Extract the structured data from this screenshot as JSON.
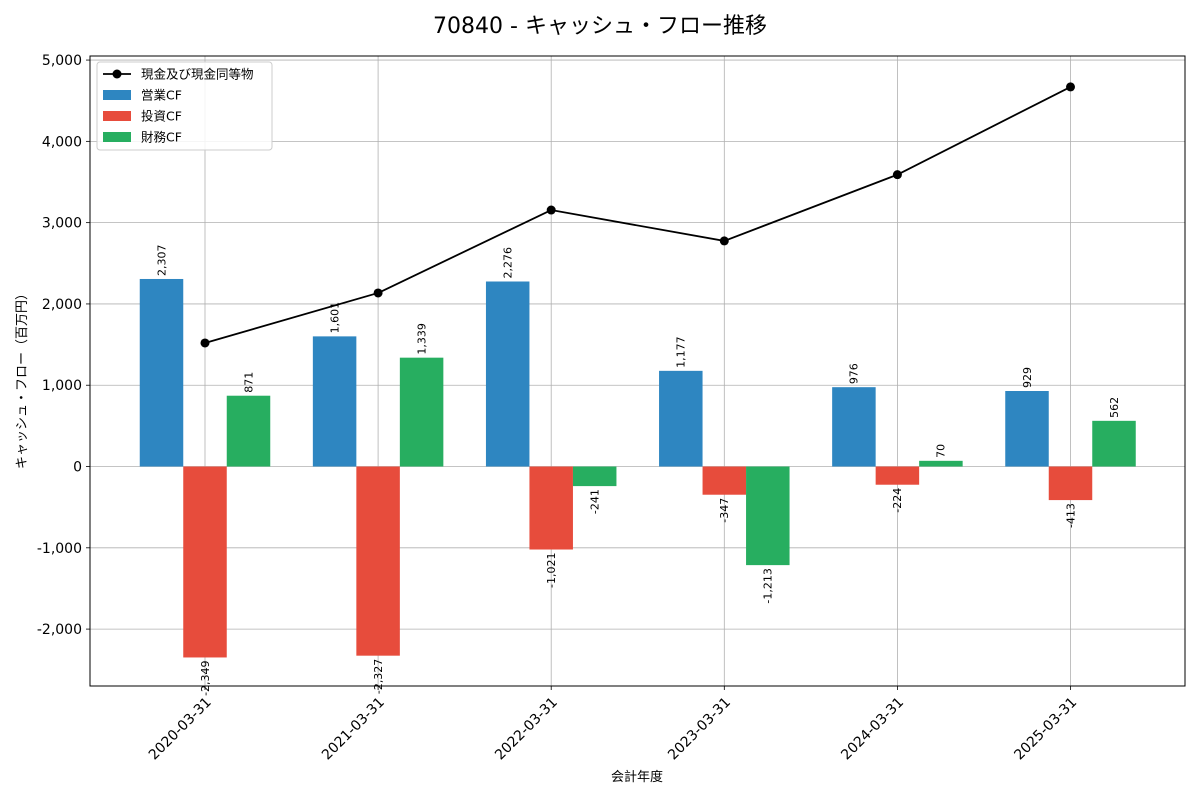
{
  "chart_data": {
    "type": "bar",
    "title": "70840 - キャッシュ・フロー推移",
    "xlabel": "会計年度",
    "ylabel": "キャッシュ・フロー（百万円）",
    "categories": [
      "2020-03-31",
      "2021-03-31",
      "2022-03-31",
      "2023-03-31",
      "2024-03-31",
      "2025-03-31"
    ],
    "series": [
      {
        "name": "営業CF",
        "type": "bar",
        "color": "#2e86c1",
        "values": [
          2307,
          1601,
          2276,
          1177,
          976,
          929
        ],
        "labels": [
          "2,307",
          "1,601",
          "2,276",
          "1,177",
          "976",
          "929"
        ]
      },
      {
        "name": "投資CF",
        "type": "bar",
        "color": "#e74c3c",
        "values": [
          -2349,
          -2327,
          -1021,
          -347,
          -224,
          -413
        ],
        "labels": [
          "-2,349",
          "-2,327",
          "-1,021",
          "-347",
          "-224",
          "-413"
        ]
      },
      {
        "name": "財務CF",
        "type": "bar",
        "color": "#27ae60",
        "values": [
          871,
          1339,
          -241,
          -1213,
          70,
          562
        ],
        "labels": [
          "871",
          "1,339",
          "-241",
          "-1,213",
          "70",
          "562"
        ]
      },
      {
        "name": "現金及び現金同等物",
        "type": "line",
        "color": "#000000",
        "values": [
          1520,
          2135,
          3155,
          2775,
          3590,
          4670
        ]
      }
    ],
    "legend_order": [
      "現金及び現金同等物",
      "営業CF",
      "投資CF",
      "財務CF"
    ],
    "ylim": [
      -2700,
      5050
    ],
    "yticks": [
      -2000,
      -1000,
      0,
      1000,
      2000,
      3000,
      4000,
      5000
    ],
    "ytick_labels": [
      "-2,000",
      "-1,000",
      "0",
      "1,000",
      "2,000",
      "3,000",
      "4,000",
      "5,000"
    ],
    "grid": true,
    "legend_position": "top-left"
  }
}
